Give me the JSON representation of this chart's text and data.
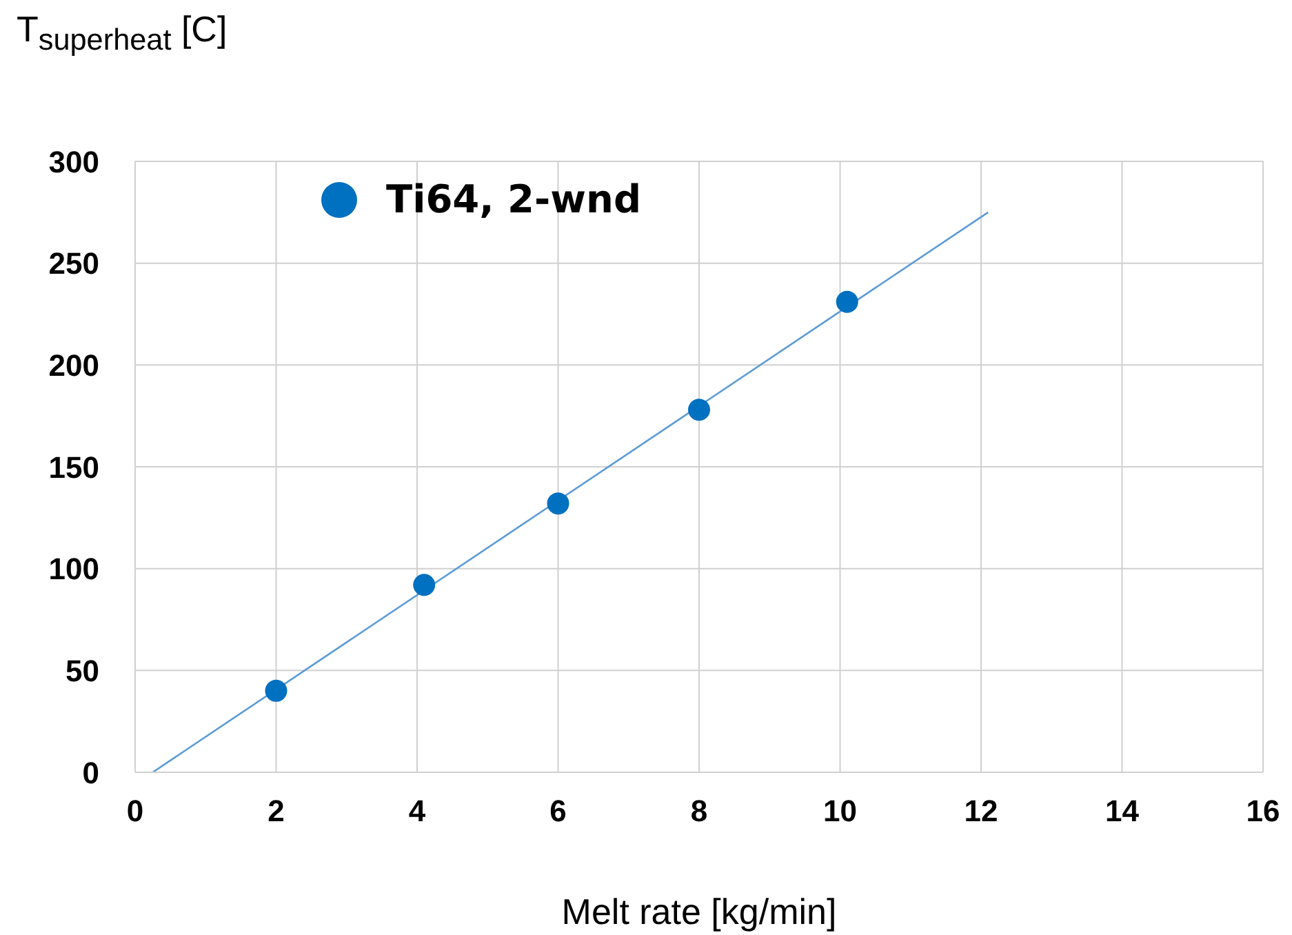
{
  "chart_data": {
    "type": "scatter",
    "xlabel": "Melt rate [kg/min]",
    "ylabel": "T$_{superheat}$ [C]",
    "xlim": [
      0,
      16
    ],
    "xticks": [
      0,
      2,
      4,
      6,
      8,
      10,
      12,
      14,
      16
    ],
    "ylim": [
      0,
      300
    ],
    "yticks": [
      0,
      50,
      100,
      150,
      200,
      250,
      300
    ],
    "grid": true,
    "legend": "top left",
    "series": [
      {
        "name": "Ti64, 2-wnd",
        "marker": "circle",
        "color": "#0070c0",
        "x": [
          2,
          4.1,
          6,
          8,
          10.1
        ],
        "values": [
          40,
          92,
          132,
          178,
          231
        ]
      },
      {
        "type": "line",
        "marker": "none",
        "color": "#5b9bd5",
        "x": [
          0.25,
          12.1
        ],
        "values": [
          0,
          275
        ]
      }
    ]
  }
}
